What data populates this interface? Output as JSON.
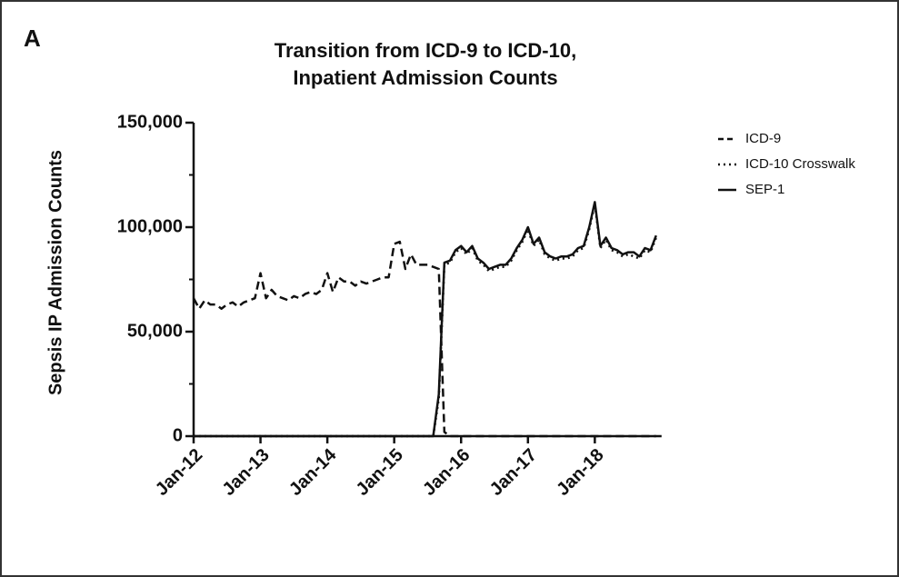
{
  "chart_data": {
    "type": "line",
    "panel_label": "A",
    "title": [
      "Transition from ICD-9 to ICD-10,",
      "Inpatient Admission Counts"
    ],
    "y_label": "Sepsis IP Admission Counts",
    "categories": [
      "Jan-12",
      null,
      null,
      null,
      null,
      null,
      null,
      null,
      null,
      null,
      null,
      null,
      "Jan-13",
      null,
      null,
      null,
      null,
      null,
      null,
      null,
      null,
      null,
      null,
      null,
      "Jan-14",
      null,
      null,
      null,
      null,
      null,
      null,
      null,
      null,
      null,
      null,
      null,
      "Jan-15",
      null,
      null,
      null,
      null,
      null,
      null,
      null,
      null,
      null,
      null,
      null,
      "Jan-16",
      null,
      null,
      null,
      null,
      null,
      null,
      null,
      null,
      null,
      null,
      null,
      "Jan-17",
      null,
      null,
      null,
      null,
      null,
      null,
      null,
      null,
      null,
      null,
      null,
      "Jan-18",
      null,
      null,
      null,
      null,
      null,
      null,
      null,
      null,
      null,
      null,
      null
    ],
    "ylim": [
      0,
      150000
    ],
    "yticks": [
      0,
      {
        "value": 50000,
        "label": "50,000"
      },
      {
        "value": 100000,
        "label": "100,000"
      },
      {
        "value": 150000,
        "label": "150,000"
      }
    ],
    "yminor_ticks": [
      25000,
      75000,
      125000
    ],
    "legend": "upper right",
    "series": [
      {
        "name": "ICD-9",
        "color": "#111111",
        "dash": "dashed",
        "values": [
          66000,
          61000,
          65000,
          63000,
          63000,
          61000,
          63000,
          64000,
          62000,
          64000,
          65000,
          66000,
          78000,
          66000,
          70000,
          67000,
          66000,
          65000,
          67000,
          66000,
          68000,
          69000,
          68000,
          70000,
          78000,
          69000,
          76000,
          74000,
          74000,
          72000,
          74000,
          73000,
          74000,
          75000,
          76000,
          76000,
          92000,
          93000,
          80000,
          87000,
          82000,
          82000,
          82000,
          81000,
          80000,
          2000,
          0,
          0,
          0,
          0,
          0,
          0,
          0,
          0,
          0,
          0,
          0,
          0,
          0,
          0,
          0,
          0,
          0,
          0,
          0,
          0,
          0,
          0,
          0,
          0,
          0,
          0,
          0,
          0,
          0,
          0,
          0,
          0,
          0,
          0,
          0,
          0,
          0,
          0
        ]
      },
      {
        "name": "ICD-10 Crosswalk",
        "color": "#111111",
        "dash": "dotted",
        "values": [
          0,
          0,
          0,
          0,
          0,
          0,
          0,
          0,
          0,
          0,
          0,
          0,
          0,
          0,
          0,
          0,
          0,
          0,
          0,
          0,
          0,
          0,
          0,
          0,
          0,
          0,
          0,
          0,
          0,
          0,
          0,
          0,
          0,
          0,
          0,
          0,
          0,
          0,
          0,
          0,
          0,
          0,
          0,
          0,
          18000,
          82000,
          83000,
          88000,
          90000,
          87000,
          90000,
          84000,
          82000,
          79000,
          80000,
          81000,
          81000,
          84000,
          89000,
          93000,
          99000,
          91000,
          94000,
          87000,
          85000,
          84000,
          85000,
          85000,
          86000,
          89000,
          90000,
          99000,
          111000,
          90000,
          94000,
          89000,
          88000,
          86000,
          87000,
          86000,
          85000,
          89000,
          88000,
          95000
        ]
      },
      {
        "name": "SEP-1",
        "color": "#111111",
        "dash": "solid",
        "values": [
          0,
          0,
          0,
          0,
          0,
          0,
          0,
          0,
          0,
          0,
          0,
          0,
          0,
          0,
          0,
          0,
          0,
          0,
          0,
          0,
          0,
          0,
          0,
          0,
          0,
          0,
          0,
          0,
          0,
          0,
          0,
          0,
          0,
          0,
          0,
          0,
          0,
          0,
          0,
          0,
          0,
          0,
          0,
          0,
          20000,
          83000,
          84000,
          89000,
          91000,
          88000,
          91000,
          85000,
          83000,
          80000,
          81000,
          82000,
          82000,
          85000,
          90000,
          94000,
          100000,
          92000,
          95000,
          88000,
          86000,
          85000,
          86000,
          86000,
          87000,
          90000,
          91000,
          100000,
          112000,
          91000,
          95000,
          90000,
          89000,
          87000,
          88000,
          88000,
          86000,
          90000,
          89000,
          96000
        ]
      }
    ]
  }
}
